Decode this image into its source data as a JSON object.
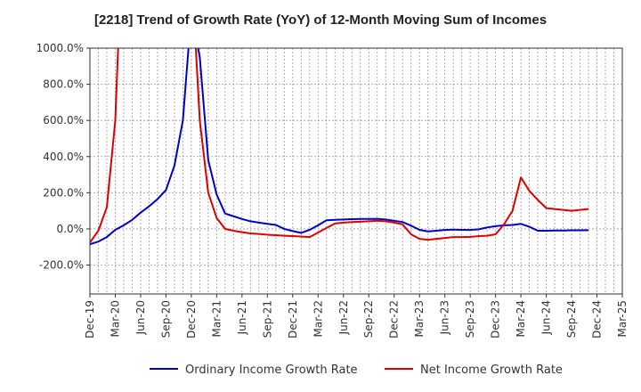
{
  "chart_data": {
    "type": "line",
    "title": "[2218]  Trend of Growth Rate (YoY) of 12-Month Moving Sum of Incomes",
    "xlabel": "",
    "ylabel": "",
    "ylim": [
      -360,
      1000
    ],
    "yticks": [
      1000,
      800,
      600,
      400,
      200,
      0,
      -200
    ],
    "ytick_labels": [
      "1000.0%",
      "800.0%",
      "600.0%",
      "400.0%",
      "200.0%",
      "0.0%",
      "-200.0%"
    ],
    "x_start": "2019-12",
    "x_end": "2025-03",
    "xtick_labels": [
      "Dec-19",
      "Mar-20",
      "Jun-20",
      "Sep-20",
      "Dec-20",
      "Mar-21",
      "Jun-21",
      "Sep-21",
      "Dec-21",
      "Mar-22",
      "Jun-22",
      "Sep-22",
      "Dec-22",
      "Mar-23",
      "Jun-23",
      "Sep-23",
      "Dec-23",
      "Mar-24",
      "Jun-24",
      "Sep-24",
      "Dec-24",
      "Mar-25"
    ],
    "grid": true,
    "legend_position": "bottom",
    "series": [
      {
        "name": "Ordinary Income Growth Rate",
        "color": "#0000cc",
        "values": [
          -85,
          -70,
          -45,
          -5,
          20,
          50,
          90,
          125,
          165,
          215,
          350,
          600,
          1200,
          950,
          380,
          190,
          85,
          70,
          55,
          42,
          35,
          28,
          22,
          0,
          -12,
          -22,
          -5,
          20,
          48,
          50,
          52,
          54,
          55,
          55,
          56,
          52,
          45,
          38,
          18,
          -5,
          -14,
          -10,
          -6,
          -4,
          -5,
          -6,
          -2,
          8,
          15,
          20,
          22,
          28,
          12,
          -10,
          -10,
          -9,
          -9,
          -8,
          -8,
          -7
        ]
      },
      {
        "name": "Net Income Growth Rate",
        "color": "#dd0000",
        "values": [
          -75,
          -10,
          120,
          600,
          1800,
          null,
          null,
          null,
          null,
          null,
          null,
          null,
          1450,
          600,
          200,
          60,
          0,
          -10,
          -18,
          -25,
          -28,
          -32,
          -35,
          -38,
          -40,
          -42,
          -45,
          -20,
          5,
          30,
          35,
          38,
          40,
          42,
          45,
          42,
          35,
          25,
          -30,
          -55,
          -60,
          -55,
          -50,
          -45,
          -45,
          -44,
          -40,
          -38,
          -30,
          25,
          100,
          285,
          210,
          160,
          115,
          110,
          105,
          100,
          105,
          110
        ]
      }
    ]
  }
}
